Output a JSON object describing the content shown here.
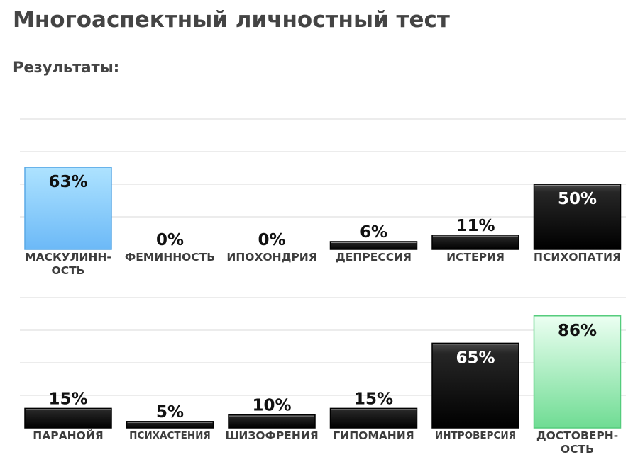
{
  "header": {
    "title": "Многоаспектный личностный тест",
    "subtitle": "Результаты:"
  },
  "chart_data": [
    {
      "type": "bar",
      "ylim": [
        0,
        100
      ],
      "grid": true,
      "categories": [
        "МАСКУЛИНН-\nОСТЬ",
        "ФЕМИННОСТЬ",
        "ИПОХОНДРИЯ",
        "ДЕПРЕССИЯ",
        "ИСТЕРИЯ",
        "ПСИХОПАТИЯ"
      ],
      "values": [
        63,
        0,
        0,
        6,
        11,
        50
      ],
      "value_labels": [
        "63%",
        "0%",
        "0%",
        "6%",
        "11%",
        "50%"
      ],
      "bar_colors": [
        "#7cc6fb",
        "#111111",
        "#111111",
        "#111111",
        "#111111",
        "#111111"
      ]
    },
    {
      "type": "bar",
      "ylim": [
        0,
        100
      ],
      "grid": true,
      "categories": [
        "ПАРАНОЙЯ",
        "ПСИХАСТЕНИЯ",
        "ШИЗОФРЕНИЯ",
        "ГИПОМАНИЯ",
        "ИНТРОВЕРСИЯ",
        "ДОСТОВЕРН-\nОСТЬ"
      ],
      "values": [
        15,
        5,
        10,
        15,
        65,
        86
      ],
      "value_labels": [
        "15%",
        "5%",
        "10%",
        "15%",
        "65%",
        "86%"
      ],
      "bar_colors": [
        "#111111",
        "#111111",
        "#111111",
        "#111111",
        "#111111",
        "#8fe9ae"
      ]
    }
  ]
}
